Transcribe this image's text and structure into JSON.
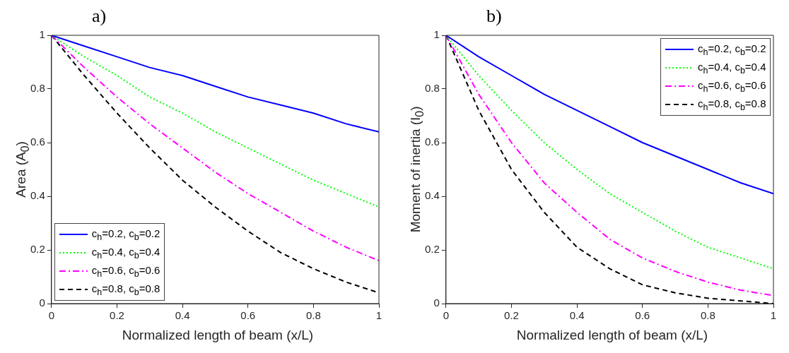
{
  "chart_data": [
    {
      "type": "line",
      "title": "a)",
      "xlabel": "Normalized length of beam (x/L)",
      "ylabel": "Area (A$_{0}$)",
      "x": [
        0,
        0.1,
        0.2,
        0.3,
        0.4,
        0.5,
        0.6,
        0.7,
        0.8,
        0.9,
        1
      ],
      "series": [
        {
          "name": "c$_{h}$=0.2, c$_{b}$=0.2",
          "color": "#0000ff",
          "line_style": "solid",
          "values": [
            1,
            0.96,
            0.92,
            0.88,
            0.85,
            0.81,
            0.77,
            0.74,
            0.71,
            0.67,
            0.64
          ]
        },
        {
          "name": "c$_{h}$=0.4, c$_{b}$=0.4",
          "color": "#00ff00",
          "line_style": "dotted",
          "values": [
            1,
            0.92,
            0.85,
            0.77,
            0.71,
            0.64,
            0.58,
            0.52,
            0.46,
            0.41,
            0.36
          ]
        },
        {
          "name": "c$_{h}$=0.6, c$_{b}$=0.6",
          "color": "#ff00ff",
          "line_style": "dashdot",
          "values": [
            1,
            0.88,
            0.77,
            0.67,
            0.58,
            0.49,
            0.41,
            0.34,
            0.27,
            0.21,
            0.16
          ]
        },
        {
          "name": "c$_{h}$=0.8, c$_{b}$=0.8",
          "color": "#000000",
          "line_style": "dashed",
          "values": [
            1,
            0.85,
            0.71,
            0.58,
            0.46,
            0.36,
            0.27,
            0.19,
            0.13,
            0.08,
            0.04
          ]
        }
      ],
      "xlim": [
        0,
        1
      ],
      "xticks": [
        0,
        0.2,
        0.4,
        0.6,
        0.8,
        1
      ],
      "ylim": [
        0,
        1
      ],
      "yticks": [
        0,
        0.2,
        0.4,
        0.6,
        0.8,
        1
      ],
      "legend": "bottom left",
      "marker": "none"
    },
    {
      "type": "line",
      "title": "b)",
      "xlabel": "Normalized length of beam (x/L)",
      "ylabel": "Moment of inertia (I$_{0}$)",
      "x": [
        0,
        0.1,
        0.2,
        0.3,
        0.4,
        0.5,
        0.6,
        0.7,
        0.8,
        0.9,
        1
      ],
      "series": [
        {
          "name": "c$_{h}$=0.2, c$_{b}$=0.2",
          "color": "#0000ff",
          "line_style": "solid",
          "values": [
            1,
            0.92,
            0.85,
            0.78,
            0.72,
            0.66,
            0.6,
            0.55,
            0.5,
            0.45,
            0.41
          ]
        },
        {
          "name": "c$_{h}$=0.4, c$_{b}$=0.4",
          "color": "#00ff00",
          "line_style": "dotted",
          "values": [
            1,
            0.85,
            0.72,
            0.6,
            0.5,
            0.41,
            0.34,
            0.27,
            0.21,
            0.17,
            0.13
          ]
        },
        {
          "name": "c$_{h}$=0.6, c$_{b}$=0.6",
          "color": "#ff00ff",
          "line_style": "dashdot",
          "values": [
            1,
            0.78,
            0.6,
            0.45,
            0.34,
            0.24,
            0.17,
            0.12,
            0.08,
            0.05,
            0.03
          ]
        },
        {
          "name": "c$_{h}$=0.8, c$_{b}$=0.8",
          "color": "#000000",
          "line_style": "dashed",
          "values": [
            1,
            0.72,
            0.5,
            0.34,
            0.21,
            0.13,
            0.07,
            0.04,
            0.02,
            0.01,
            0
          ]
        }
      ],
      "xlim": [
        0,
        1
      ],
      "xticks": [
        0,
        0.2,
        0.4,
        0.6,
        0.8,
        1
      ],
      "ylim": [
        0,
        1
      ],
      "yticks": [
        0,
        0.2,
        0.4,
        0.6,
        0.8,
        1
      ],
      "legend": "top right",
      "marker": "none"
    }
  ]
}
